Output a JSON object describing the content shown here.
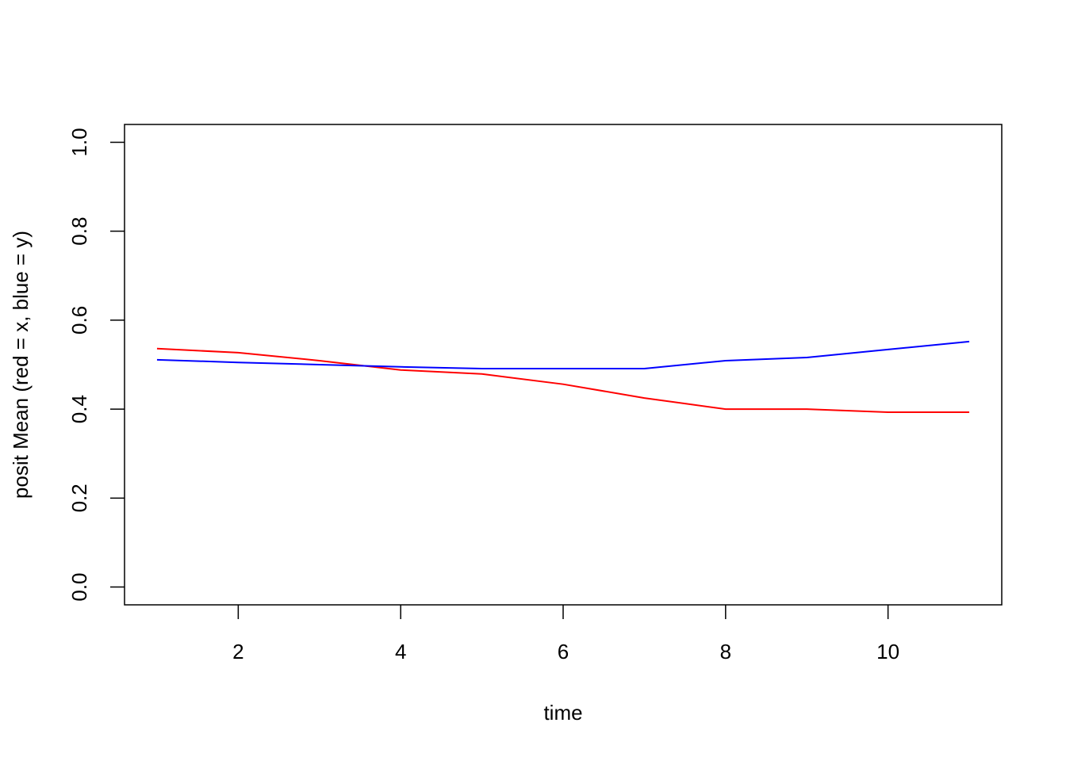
{
  "chart_data": {
    "type": "line",
    "x_label": "time",
    "y_label": "posit Mean (red = x, blue = y)",
    "x": [
      1,
      2,
      3,
      4,
      5,
      6,
      7,
      8,
      9,
      10,
      11
    ],
    "series": [
      {
        "color": "#ff0000",
        "values": [
          0.536,
          0.527,
          0.509,
          0.488,
          0.479,
          0.456,
          0.425,
          0.4,
          0.4,
          0.393,
          0.393
        ]
      },
      {
        "color": "#0000ff",
        "values": [
          0.511,
          0.505,
          0.5,
          0.495,
          0.491,
          0.491,
          0.491,
          0.509,
          0.516,
          0.534,
          0.552
        ]
      }
    ],
    "xlim": [
      0.6,
      11.4
    ],
    "ylim": [
      -0.04,
      1.04
    ],
    "xticks": [
      2,
      4,
      6,
      8,
      10
    ],
    "yticks": [
      {
        "value": 0,
        "label": "0.0"
      },
      0.2,
      0.4,
      0.6,
      0.8,
      {
        "value": 1,
        "label": "1.0"
      }
    ],
    "grid": false
  }
}
